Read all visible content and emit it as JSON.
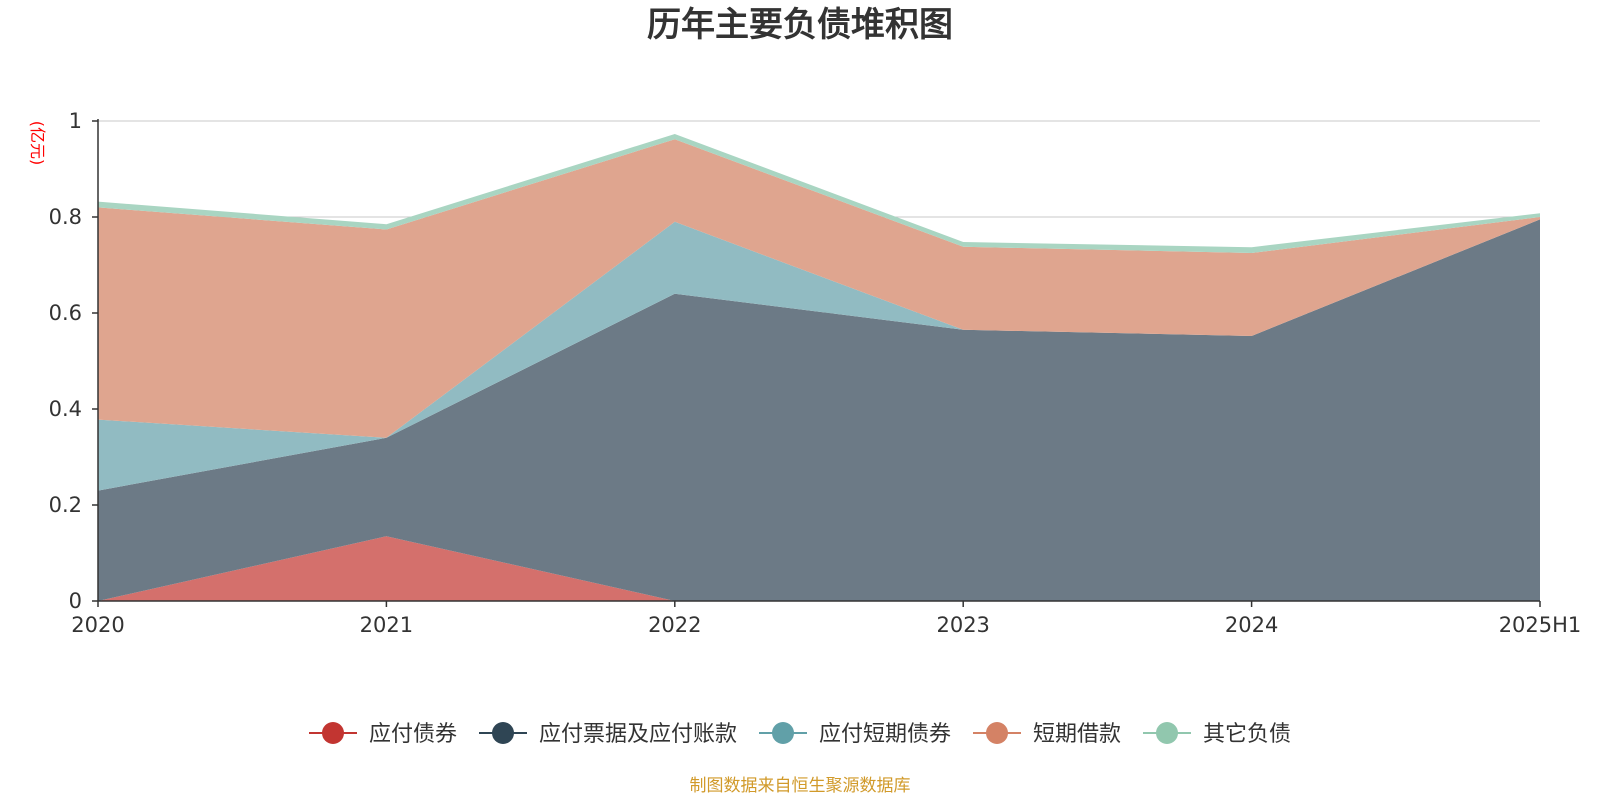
{
  "chart_data": {
    "type": "area",
    "stacked": true,
    "title": "历年主要负债堆积图",
    "unit_label": "(亿元)",
    "source_note": "制图数据来自恒生聚源数据库",
    "categories": [
      "2020",
      "2021",
      "2022",
      "2023",
      "2024",
      "2025H1"
    ],
    "ylim": [
      0,
      1
    ],
    "yticks": [
      "0",
      "0.2",
      "0.4",
      "0.6",
      "0.8",
      "1"
    ],
    "grid": true,
    "legend_position": "bottom",
    "series": [
      {
        "name": "应付债券",
        "color": "#c23531",
        "fill": "#d4706c",
        "values": [
          0,
          0.135,
          0,
          0,
          0,
          0
        ]
      },
      {
        "name": "应付票据及应付账款",
        "color": "#2f4554",
        "fill": "#6c7a86",
        "values": [
          0.23,
          0.205,
          0.64,
          0.565,
          0.552,
          0.795
        ]
      },
      {
        "name": "应付短期债券",
        "color": "#61a0a8",
        "fill": "#91bbc2",
        "values": [
          0.148,
          0,
          0.15,
          0,
          0,
          0
        ]
      },
      {
        "name": "短期借款",
        "color": "#d48265",
        "fill": "#dfa58f",
        "values": [
          0.442,
          0.434,
          0.172,
          0.173,
          0.173,
          0.005
        ]
      },
      {
        "name": "其它负债",
        "color": "#91c7ae",
        "fill": "#a9d5c2",
        "values": [
          0.012,
          0.011,
          0.011,
          0.01,
          0.012,
          0.008
        ]
      }
    ]
  }
}
